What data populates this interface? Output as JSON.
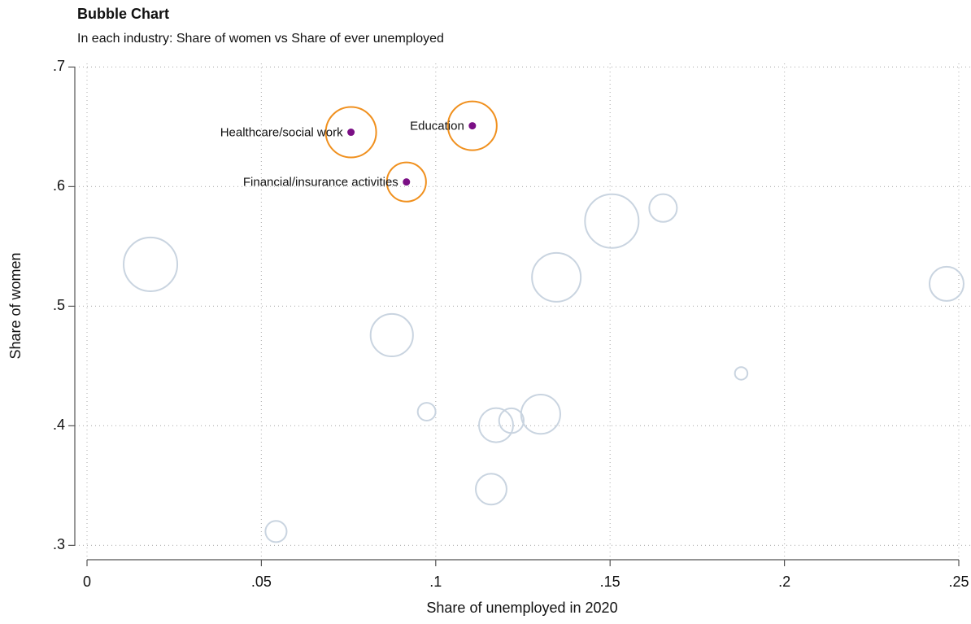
{
  "chart_data": {
    "type": "scatter",
    "title": "Bubble Chart",
    "subtitle": "In each industry: Share of women vs Share of ever unemployed",
    "x_label": "Share of unemployed in 2020",
    "y_label": "Share of women",
    "x": [
      0.0182,
      0.0542,
      0.0874,
      0.0974,
      0.1173,
      0.1217,
      0.1159,
      0.1301,
      0.1346,
      0.1505,
      0.1652,
      0.1876,
      0.2465,
      0.0757,
      0.1105,
      0.0916
    ],
    "y": [
      0.535,
      0.3116,
      0.4758,
      0.4118,
      0.4005,
      0.4043,
      0.347,
      0.4097,
      0.5242,
      0.5712,
      0.5821,
      0.4438,
      0.5187,
      0.6455,
      0.6509,
      0.6039
    ],
    "size": [
      10.9,
      1.7,
      6.8,
      1.2,
      4.4,
      2.3,
      3.6,
      5.8,
      9,
      10.9,
      2.9,
      0.6,
      4.4,
      9.6,
      9,
      5.8
    ],
    "labels": [
      null,
      null,
      null,
      null,
      null,
      null,
      null,
      null,
      null,
      null,
      null,
      null,
      null,
      "Healthcare/social work",
      "Education",
      "Financial/insurance activities"
    ],
    "color": "#c9d4e0",
    "highlight_color": "#f0901e",
    "dot_color": "#7b0f85",
    "xlim": [
      -0.0035,
      0.2535
    ],
    "ylim": [
      0.288,
      0.703
    ],
    "xticks": [
      0,
      {
        "value": 0.05,
        "label": ".05"
      },
      {
        "value": 0.1,
        "label": ".1"
      },
      {
        "value": 0.15,
        "label": ".15"
      },
      {
        "value": 0.2,
        "label": ".2"
      },
      {
        "value": 0.25,
        "label": ".25"
      }
    ],
    "yticks": [
      {
        "value": 0.3,
        "label": ".3"
      },
      {
        "value": 0.4,
        "label": ".4"
      },
      {
        "value": 0.5,
        "label": ".5"
      },
      {
        "value": 0.6,
        "label": ".6"
      },
      {
        "value": 0.7,
        "label": ".7"
      }
    ],
    "grid": true
  }
}
